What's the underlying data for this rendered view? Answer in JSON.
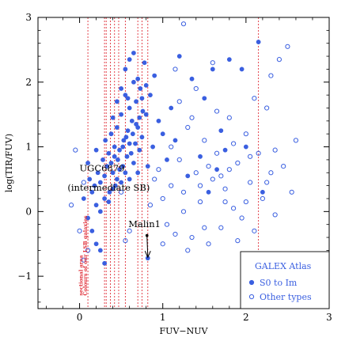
{
  "chart_data": {
    "type": "scatter",
    "title": "",
    "xlabel": "FUV−NUV",
    "ylabel": "log(TIR/FUV)",
    "xlim": [
      -0.5,
      3.0
    ],
    "ylim": [
      -1.5,
      3.0
    ],
    "xticks": [
      {
        "value": 0,
        "label": "0"
      },
      {
        "value": 1,
        "label": "1"
      },
      {
        "value": 2,
        "label": "2"
      },
      {
        "value": 3,
        "label": "3"
      }
    ],
    "yticks": [
      {
        "value": -1,
        "label": "−1"
      },
      {
        "value": 0,
        "label": "0"
      },
      {
        "value": 1,
        "label": "1"
      },
      {
        "value": 2,
        "label": "2"
      },
      {
        "value": 3,
        "label": "3"
      }
    ],
    "grid": false,
    "marker_color": "#3a5fe0",
    "guide_color": "#e0303a",
    "legend": {
      "placement": "bottom-right",
      "title": "GALEX Atlas",
      "entries": [
        "S0 to Im",
        "Other types"
      ]
    },
    "vertical_lines": [
      0.1,
      0.3,
      0.32,
      0.37,
      0.42,
      0.47,
      0.55,
      0.7,
      0.75,
      0.82,
      2.15
    ],
    "annotations": [
      {
        "text": "UGC6879",
        "x": 0.27,
        "y": 0.62
      },
      {
        "text": "(intermediate SB)",
        "x": 0.35,
        "y": 0.32
      },
      {
        "text": "Malin1",
        "x": 0.78,
        "y": -0.24
      },
      {
        "text": "Colours of our LSB galaxies",
        "x": 0.05,
        "y": -1.3,
        "rotated": true
      },
      {
        "text": "sectional area",
        "x": 0.0,
        "y": -1.3,
        "rotated": true
      }
    ],
    "arrow": {
      "from": [
        0.81,
        -0.37
      ],
      "to": [
        0.82,
        -0.72
      ]
    },
    "series": [
      {
        "name": "S0 to Im",
        "marker": "filled-circle",
        "points": [
          [
            0.1,
            -0.1
          ],
          [
            0.05,
            0.2
          ],
          [
            0.12,
            0.5
          ],
          [
            0.15,
            0.3
          ],
          [
            0.18,
            0.4
          ],
          [
            0.2,
            0.1
          ],
          [
            0.22,
            0.6
          ],
          [
            0.25,
            0.45
          ],
          [
            0.28,
            0.8
          ],
          [
            0.3,
            0.55
          ],
          [
            0.31,
            1.1
          ],
          [
            0.33,
            0.7
          ],
          [
            0.35,
            0.9
          ],
          [
            0.36,
            0.3
          ],
          [
            0.38,
            1.2
          ],
          [
            0.4,
            0.6
          ],
          [
            0.42,
            1.0
          ],
          [
            0.43,
            0.4
          ],
          [
            0.45,
            1.3
          ],
          [
            0.46,
            0.8
          ],
          [
            0.48,
            0.95
          ],
          [
            0.5,
            1.5
          ],
          [
            0.52,
            0.7
          ],
          [
            0.53,
            1.1
          ],
          [
            0.55,
            1.8
          ],
          [
            0.57,
            0.85
          ],
          [
            0.58,
            1.25
          ],
          [
            0.6,
            1.6
          ],
          [
            0.62,
            0.9
          ],
          [
            0.63,
            1.4
          ],
          [
            0.65,
            2.0
          ],
          [
            0.67,
            1.05
          ],
          [
            0.68,
            1.7
          ],
          [
            0.7,
            1.3
          ],
          [
            0.72,
            0.95
          ],
          [
            0.73,
            1.9
          ],
          [
            0.75,
            1.15
          ],
          [
            0.78,
            2.3
          ],
          [
            0.8,
            1.5
          ],
          [
            0.82,
            0.7
          ],
          [
            0.85,
            1.8
          ],
          [
            0.88,
            1.0
          ],
          [
            0.9,
            2.1
          ],
          [
            0.95,
            1.4
          ],
          [
            1.0,
            1.2
          ],
          [
            1.05,
            0.8
          ],
          [
            1.1,
            1.6
          ],
          [
            1.15,
            1.1
          ],
          [
            0.15,
            -0.3
          ],
          [
            0.2,
            -0.5
          ],
          [
            0.25,
            0.0
          ],
          [
            0.3,
            0.2
          ],
          [
            0.35,
            0.15
          ],
          [
            0.4,
            0.35
          ],
          [
            0.45,
            0.5
          ],
          [
            0.5,
            0.45
          ],
          [
            0.55,
            0.6
          ],
          [
            0.6,
            0.5
          ],
          [
            0.65,
            0.75
          ],
          [
            0.7,
            0.6
          ],
          [
            0.38,
            0.75
          ],
          [
            0.42,
            0.85
          ],
          [
            0.48,
            0.65
          ],
          [
            0.52,
            1.0
          ],
          [
            0.56,
            1.15
          ],
          [
            0.6,
            1.05
          ],
          [
            0.64,
            1.2
          ],
          [
            0.68,
            1.35
          ],
          [
            0.72,
            1.45
          ],
          [
            0.76,
            1.55
          ],
          [
            0.4,
            1.45
          ],
          [
            0.45,
            1.7
          ],
          [
            0.5,
            1.9
          ],
          [
            0.55,
            2.2
          ],
          [
            0.6,
            2.35
          ],
          [
            0.65,
            2.45
          ],
          [
            0.7,
            2.05
          ],
          [
            0.75,
            1.75
          ],
          [
            0.8,
            1.95
          ],
          [
            0.58,
            1.75
          ],
          [
            1.2,
            2.4
          ],
          [
            1.35,
            2.05
          ],
          [
            1.5,
            1.75
          ],
          [
            1.6,
            2.2
          ],
          [
            1.7,
            1.25
          ],
          [
            1.8,
            2.35
          ],
          [
            1.95,
            2.2
          ],
          [
            2.0,
            1.0
          ],
          [
            2.15,
            2.62
          ],
          [
            1.3,
            0.55
          ],
          [
            1.45,
            0.85
          ],
          [
            1.55,
            0.3
          ],
          [
            1.65,
            0.65
          ],
          [
            1.75,
            0.95
          ],
          [
            2.2,
            0.3
          ],
          [
            0.82,
            -0.72
          ],
          [
            0.25,
            -0.6
          ],
          [
            0.3,
            -0.8
          ],
          [
            0.1,
            0.75
          ],
          [
            0.2,
            0.95
          ]
        ]
      },
      {
        "name": "Other types",
        "marker": "open-circle",
        "points": [
          [
            -0.1,
            0.1
          ],
          [
            0.0,
            -0.3
          ],
          [
            0.05,
            -0.75
          ],
          [
            0.1,
            -0.6
          ],
          [
            0.5,
            0.3
          ],
          [
            0.6,
            -0.3
          ],
          [
            0.85,
            0.1
          ],
          [
            0.9,
            0.5
          ],
          [
            1.0,
            0.2
          ],
          [
            1.05,
            -0.2
          ],
          [
            1.1,
            0.4
          ],
          [
            1.15,
            -0.35
          ],
          [
            1.2,
            0.8
          ],
          [
            1.25,
            0.0
          ],
          [
            1.3,
            1.3
          ],
          [
            1.35,
            -0.4
          ],
          [
            1.4,
            0.6
          ],
          [
            1.45,
            0.15
          ],
          [
            1.5,
            1.1
          ],
          [
            1.55,
            -0.5
          ],
          [
            1.6,
            0.5
          ],
          [
            1.65,
            0.9
          ],
          [
            1.7,
            -0.25
          ],
          [
            1.75,
            0.35
          ],
          [
            1.8,
            1.45
          ],
          [
            1.85,
            0.05
          ],
          [
            1.9,
            0.75
          ],
          [
            1.95,
            -0.1
          ],
          [
            2.0,
            1.2
          ],
          [
            2.05,
            0.45
          ],
          [
            2.1,
            -0.3
          ],
          [
            2.15,
            0.9
          ],
          [
            2.2,
            0.2
          ],
          [
            2.25,
            1.6
          ],
          [
            2.3,
            0.6
          ],
          [
            2.35,
            0.95
          ],
          [
            2.4,
            2.35
          ],
          [
            2.45,
            0.7
          ],
          [
            2.5,
            2.55
          ],
          [
            2.55,
            0.3
          ],
          [
            1.2,
            1.7
          ],
          [
            1.4,
            1.9
          ],
          [
            1.6,
            2.3
          ],
          [
            1.8,
            0.65
          ],
          [
            2.0,
            0.15
          ],
          [
            2.3,
            2.1
          ],
          [
            1.1,
            1.0
          ],
          [
            1.25,
            0.3
          ],
          [
            1.55,
            0.7
          ],
          [
            1.7,
            0.55
          ],
          [
            -0.05,
            0.95
          ],
          [
            1.0,
            -0.5
          ],
          [
            1.3,
            -0.6
          ],
          [
            1.5,
            -0.25
          ],
          [
            1.9,
            -0.45
          ],
          [
            2.6,
            1.1
          ],
          [
            1.35,
            1.45
          ],
          [
            1.85,
            1.05
          ],
          [
            2.05,
            0.85
          ],
          [
            1.15,
            2.2
          ],
          [
            1.25,
            2.9
          ],
          [
            1.65,
            1.55
          ],
          [
            2.35,
            -0.05
          ],
          [
            0.95,
            0.65
          ],
          [
            1.45,
            0.4
          ],
          [
            1.75,
            0.15
          ],
          [
            2.1,
            1.75
          ],
          [
            2.25,
            0.45
          ],
          [
            0.05,
            0.45
          ],
          [
            0.55,
            -0.45
          ]
        ]
      }
    ]
  }
}
